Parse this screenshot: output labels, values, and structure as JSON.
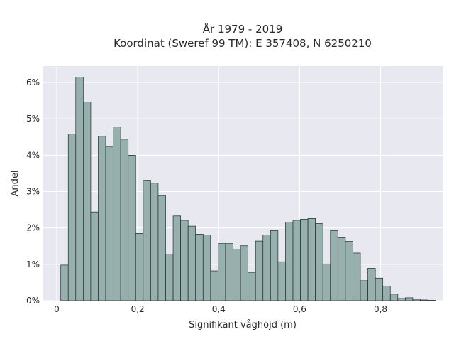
{
  "chart_data": {
    "type": "bar",
    "title_line1": "År 1979 - 2019",
    "title_line2": "Koordinat (Sweref 99 TM): E 357408, N 6250210",
    "xlabel": "Signifikant våghöjd (m)",
    "ylabel": "Andel",
    "xlim": [
      -0.035,
      0.955
    ],
    "ylim": [
      0,
      0.0645
    ],
    "x_ticks": [
      {
        "value": 0,
        "label": "0"
      },
      {
        "value": 0.2,
        "label": "0,2"
      },
      {
        "value": 0.4,
        "label": "0,4"
      },
      {
        "value": 0.6,
        "label": "0,6"
      },
      {
        "value": 0.8,
        "label": "0,8"
      }
    ],
    "y_ticks": [
      {
        "value": 0,
        "label": "0%"
      },
      {
        "value": 0.01,
        "label": "1%"
      },
      {
        "value": 0.02,
        "label": "2%"
      },
      {
        "value": 0.03,
        "label": "3%"
      },
      {
        "value": 0.04,
        "label": "4%"
      },
      {
        "value": 0.05,
        "label": "5%"
      },
      {
        "value": 0.06,
        "label": "6%"
      }
    ],
    "grid": true,
    "bin_width": 0.0185,
    "bin_start": 0.01,
    "values": [
      0.0098,
      0.0458,
      0.0615,
      0.0546,
      0.0244,
      0.0452,
      0.0424,
      0.0478,
      0.0444,
      0.04,
      0.0185,
      0.0331,
      0.0323,
      0.0289,
      0.0128,
      0.0233,
      0.0221,
      0.0205,
      0.0183,
      0.0181,
      0.0082,
      0.0157,
      0.0157,
      0.0142,
      0.0151,
      0.0078,
      0.0164,
      0.0181,
      0.0193,
      0.0107,
      0.0216,
      0.0221,
      0.0224,
      0.0226,
      0.0212,
      0.0101,
      0.0193,
      0.0173,
      0.0163,
      0.0131,
      0.0055,
      0.0089,
      0.0062,
      0.004,
      0.0018,
      0.0006,
      0.0008,
      0.0004,
      0.0002,
      0.0001
    ],
    "colors": {
      "plot_bg": "#e8e8f0",
      "bar_fill": "#97b0ae",
      "bar_stroke": "#1f2a29",
      "grid": "#ffffff"
    }
  }
}
